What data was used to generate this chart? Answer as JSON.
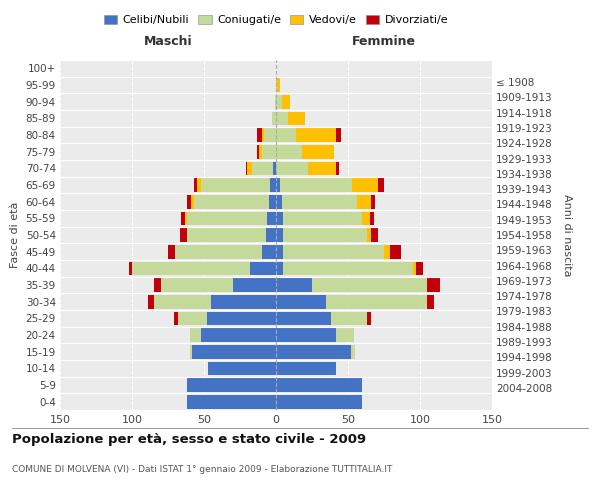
{
  "age_groups": [
    "0-4",
    "5-9",
    "10-14",
    "15-19",
    "20-24",
    "25-29",
    "30-34",
    "35-39",
    "40-44",
    "45-49",
    "50-54",
    "55-59",
    "60-64",
    "65-69",
    "70-74",
    "75-79",
    "80-84",
    "85-89",
    "90-94",
    "95-99",
    "100+"
  ],
  "birth_years": [
    "2004-2008",
    "1999-2003",
    "1994-1998",
    "1989-1993",
    "1984-1988",
    "1979-1983",
    "1974-1978",
    "1969-1973",
    "1964-1968",
    "1959-1963",
    "1954-1958",
    "1949-1953",
    "1944-1948",
    "1939-1943",
    "1934-1938",
    "1929-1933",
    "1924-1928",
    "1919-1923",
    "1914-1918",
    "1909-1913",
    "≤ 1908"
  ],
  "males": {
    "celibi": [
      62,
      62,
      47,
      58,
      52,
      48,
      45,
      30,
      18,
      10,
      7,
      6,
      5,
      4,
      2,
      0,
      0,
      0,
      0,
      0,
      0
    ],
    "coniugati": [
      0,
      0,
      0,
      2,
      8,
      20,
      40,
      50,
      82,
      60,
      55,
      56,
      52,
      48,
      15,
      10,
      8,
      3,
      1,
      0,
      0
    ],
    "vedovi": [
      0,
      0,
      0,
      0,
      0,
      0,
      0,
      0,
      0,
      0,
      0,
      1,
      2,
      3,
      3,
      2,
      2,
      0,
      0,
      0,
      0
    ],
    "divorziati": [
      0,
      0,
      0,
      0,
      0,
      3,
      4,
      5,
      2,
      5,
      5,
      3,
      3,
      2,
      1,
      1,
      3,
      0,
      0,
      0,
      0
    ]
  },
  "females": {
    "nubili": [
      60,
      60,
      42,
      52,
      42,
      38,
      35,
      25,
      5,
      5,
      5,
      5,
      4,
      3,
      0,
      0,
      0,
      0,
      0,
      0,
      0
    ],
    "coniugate": [
      0,
      0,
      0,
      3,
      12,
      25,
      70,
      80,
      90,
      70,
      58,
      55,
      52,
      50,
      22,
      18,
      14,
      8,
      4,
      1,
      0
    ],
    "vedove": [
      0,
      0,
      0,
      0,
      0,
      0,
      0,
      0,
      2,
      4,
      3,
      5,
      10,
      18,
      20,
      22,
      28,
      12,
      6,
      2,
      0
    ],
    "divorziate": [
      0,
      0,
      0,
      0,
      0,
      3,
      5,
      9,
      5,
      8,
      5,
      3,
      3,
      4,
      2,
      0,
      3,
      0,
      0,
      0,
      0
    ]
  },
  "colors": {
    "celibi": "#4472c4",
    "coniugati": "#c5d99b",
    "vedovi": "#ffc000",
    "divorziati": "#c0000a"
  },
  "title": "Popolazione per età, sesso e stato civile - 2009",
  "subtitle": "COMUNE DI MOLVENA (VI) - Dati ISTAT 1° gennaio 2009 - Elaborazione TUTTITALIA.IT",
  "xlabel_left": "Maschi",
  "xlabel_right": "Femmine",
  "ylabel_left": "Fasce di età",
  "ylabel_right": "Anni di nascita",
  "xlim": 150,
  "legend_labels": [
    "Celibi/Nubili",
    "Coniugati/e",
    "Vedovi/e",
    "Divorziati/e"
  ],
  "bg_color": "#ffffff",
  "plot_bg": "#ebebeb",
  "grid_color": "#ffffff"
}
